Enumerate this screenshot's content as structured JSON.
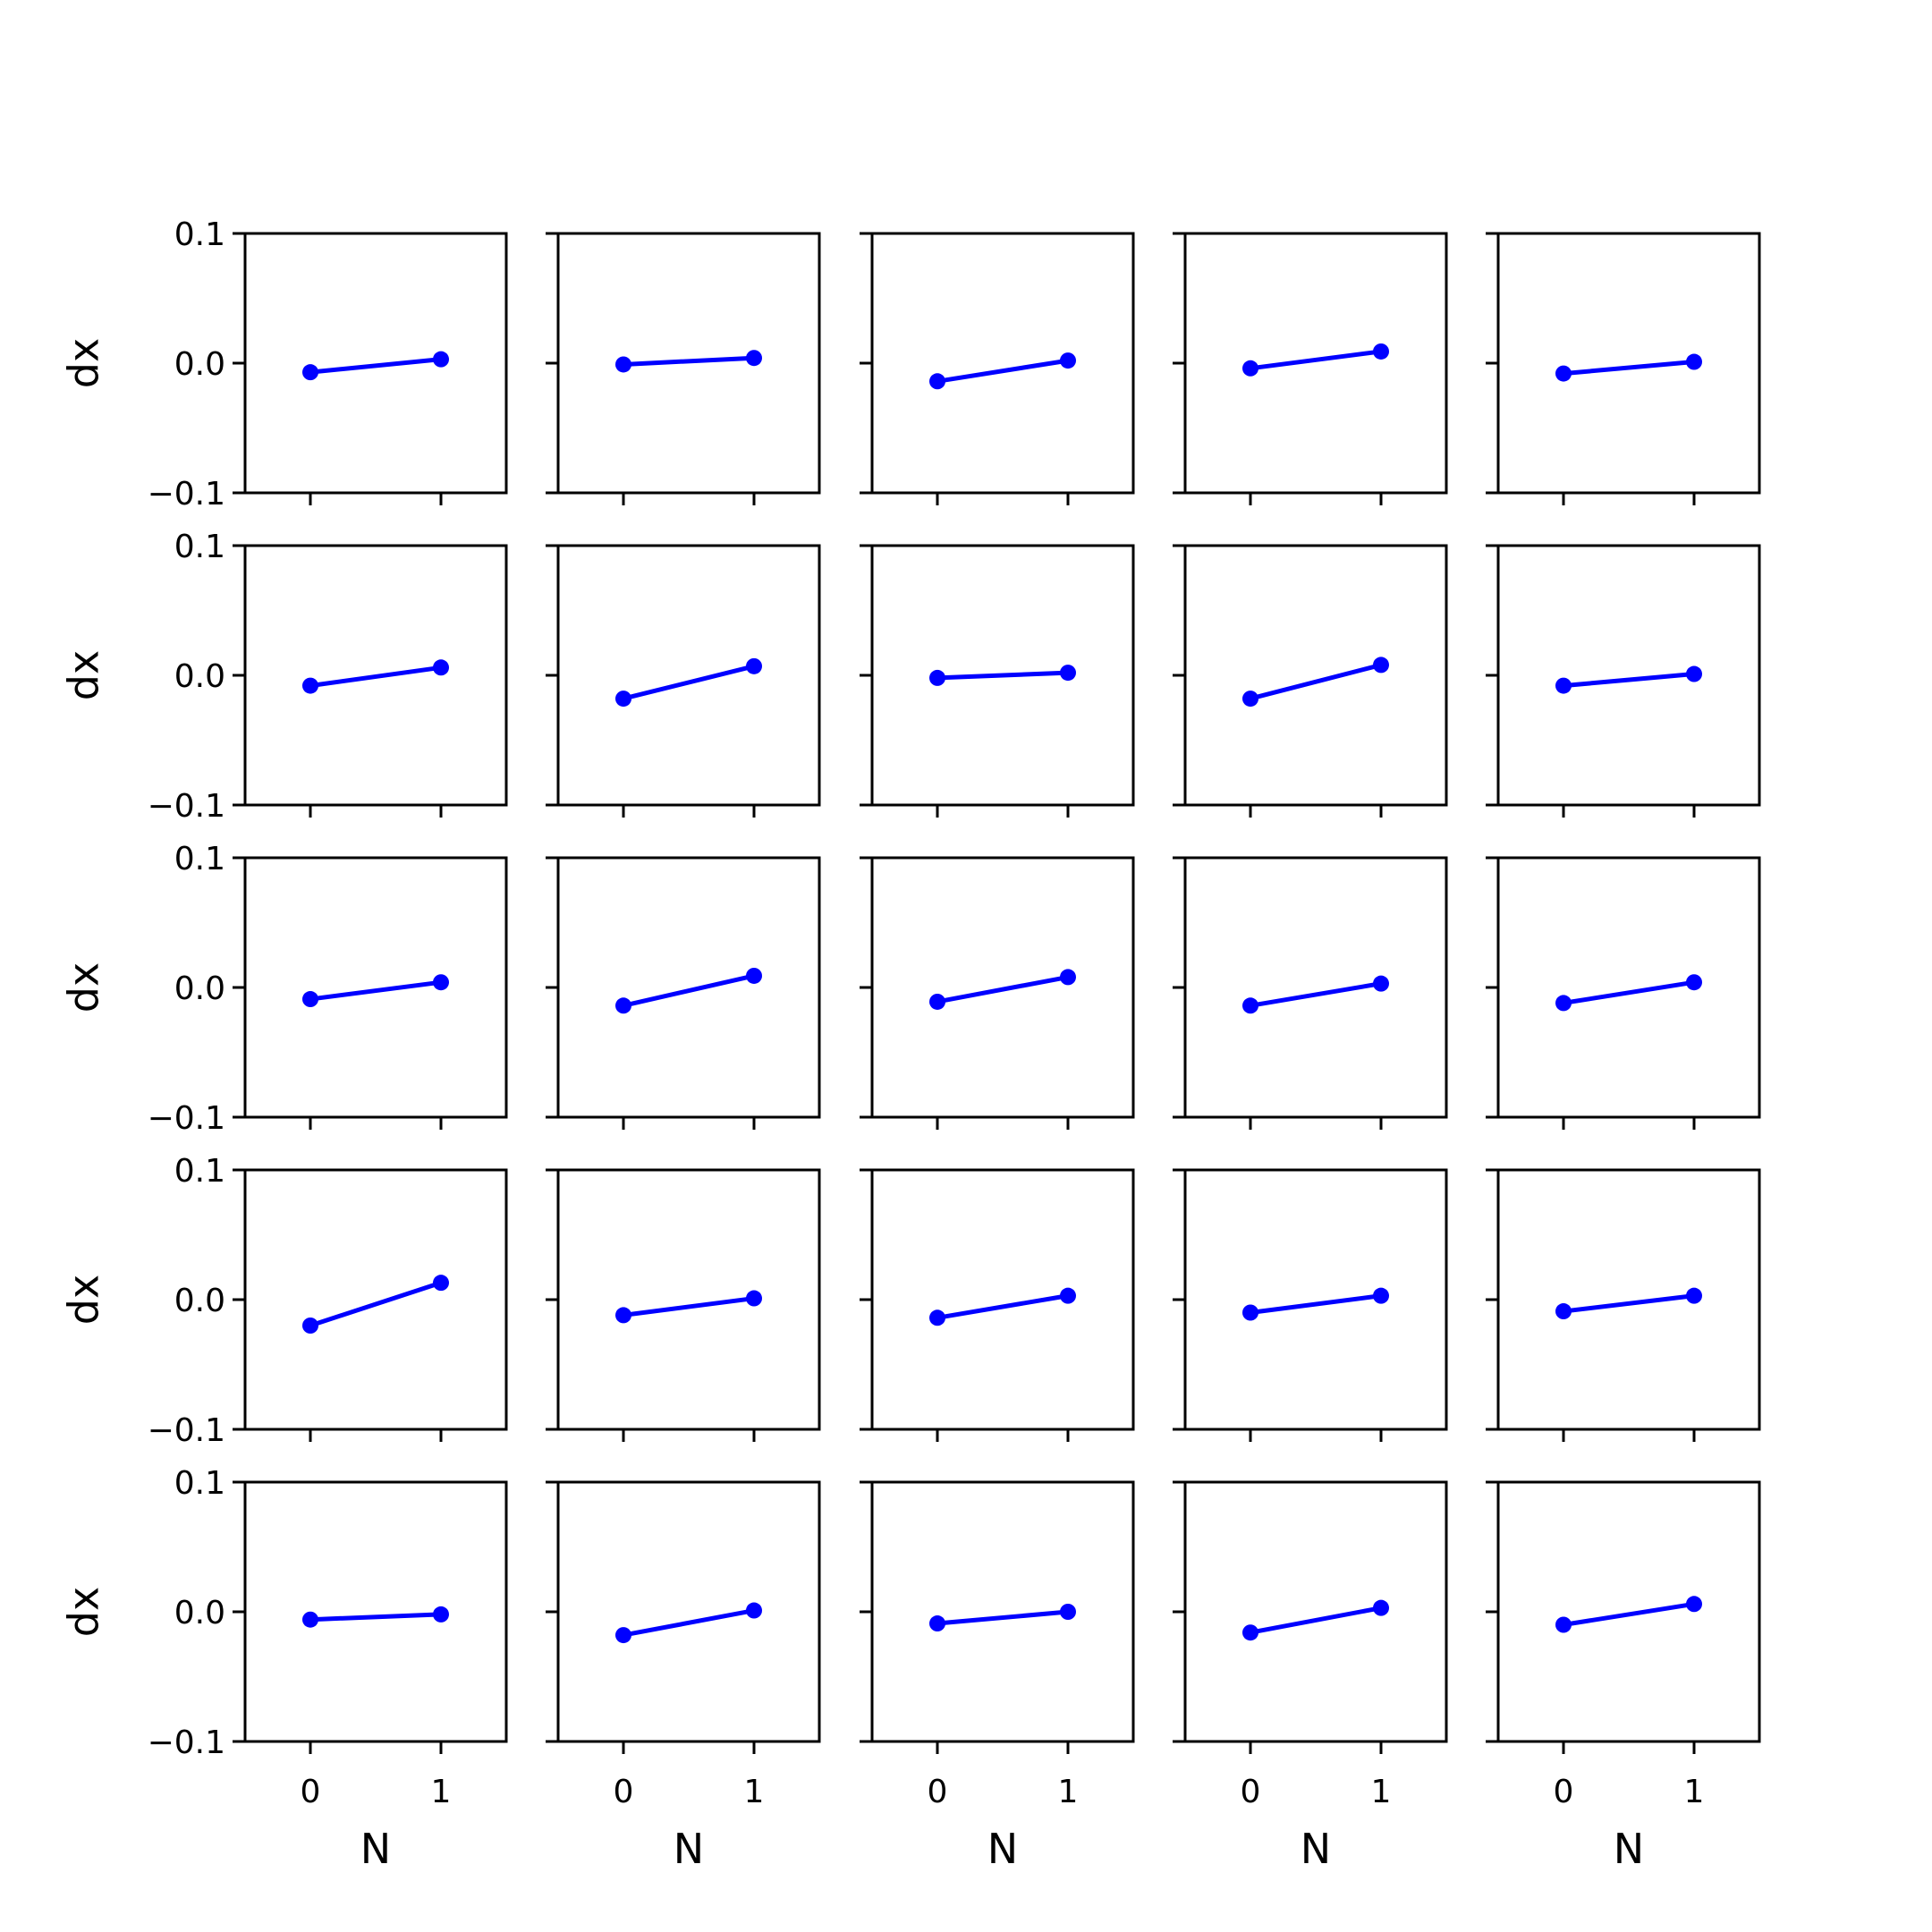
{
  "chart_data": {
    "type": "line",
    "layout": "grid",
    "rows": 5,
    "cols": 5,
    "x": [
      0,
      1
    ],
    "xticks": [
      0,
      1
    ],
    "xtick_labels": [
      "0",
      "1"
    ],
    "xlim": [
      -0.5,
      1.5
    ],
    "ylim": [
      -0.1,
      0.1
    ],
    "yticks": [
      0.1,
      0.0,
      -0.1
    ],
    "ytick_labels": [
      "0.1",
      "0.0",
      "−0.1"
    ],
    "xlabel": "N",
    "ylabel": "dx",
    "grid": false,
    "series_color": "#0000ff",
    "marker": "circle",
    "panels": [
      {
        "row": 0,
        "col": 0,
        "values": [
          -0.007,
          0.003
        ]
      },
      {
        "row": 0,
        "col": 1,
        "values": [
          -0.001,
          0.004
        ]
      },
      {
        "row": 0,
        "col": 2,
        "values": [
          -0.014,
          0.002
        ]
      },
      {
        "row": 0,
        "col": 3,
        "values": [
          -0.004,
          0.009
        ]
      },
      {
        "row": 0,
        "col": 4,
        "values": [
          -0.008,
          0.001
        ]
      },
      {
        "row": 1,
        "col": 0,
        "values": [
          -0.008,
          0.006
        ]
      },
      {
        "row": 1,
        "col": 1,
        "values": [
          -0.018,
          0.007
        ]
      },
      {
        "row": 1,
        "col": 2,
        "values": [
          -0.002,
          0.002
        ]
      },
      {
        "row": 1,
        "col": 3,
        "values": [
          -0.018,
          0.008
        ]
      },
      {
        "row": 1,
        "col": 4,
        "values": [
          -0.008,
          0.001
        ]
      },
      {
        "row": 2,
        "col": 0,
        "values": [
          -0.009,
          0.004
        ]
      },
      {
        "row": 2,
        "col": 1,
        "values": [
          -0.014,
          0.009
        ]
      },
      {
        "row": 2,
        "col": 2,
        "values": [
          -0.011,
          0.008
        ]
      },
      {
        "row": 2,
        "col": 3,
        "values": [
          -0.014,
          0.003
        ]
      },
      {
        "row": 2,
        "col": 4,
        "values": [
          -0.012,
          0.004
        ]
      },
      {
        "row": 3,
        "col": 0,
        "values": [
          -0.02,
          0.013
        ]
      },
      {
        "row": 3,
        "col": 1,
        "values": [
          -0.012,
          0.001
        ]
      },
      {
        "row": 3,
        "col": 2,
        "values": [
          -0.014,
          0.003
        ]
      },
      {
        "row": 3,
        "col": 3,
        "values": [
          -0.01,
          0.003
        ]
      },
      {
        "row": 3,
        "col": 4,
        "values": [
          -0.009,
          0.003
        ]
      },
      {
        "row": 4,
        "col": 0,
        "values": [
          -0.006,
          -0.002
        ]
      },
      {
        "row": 4,
        "col": 1,
        "values": [
          -0.018,
          0.001
        ]
      },
      {
        "row": 4,
        "col": 2,
        "values": [
          -0.009,
          0.0
        ]
      },
      {
        "row": 4,
        "col": 3,
        "values": [
          -0.016,
          0.003
        ]
      },
      {
        "row": 4,
        "col": 4,
        "values": [
          -0.01,
          0.006
        ]
      }
    ]
  }
}
